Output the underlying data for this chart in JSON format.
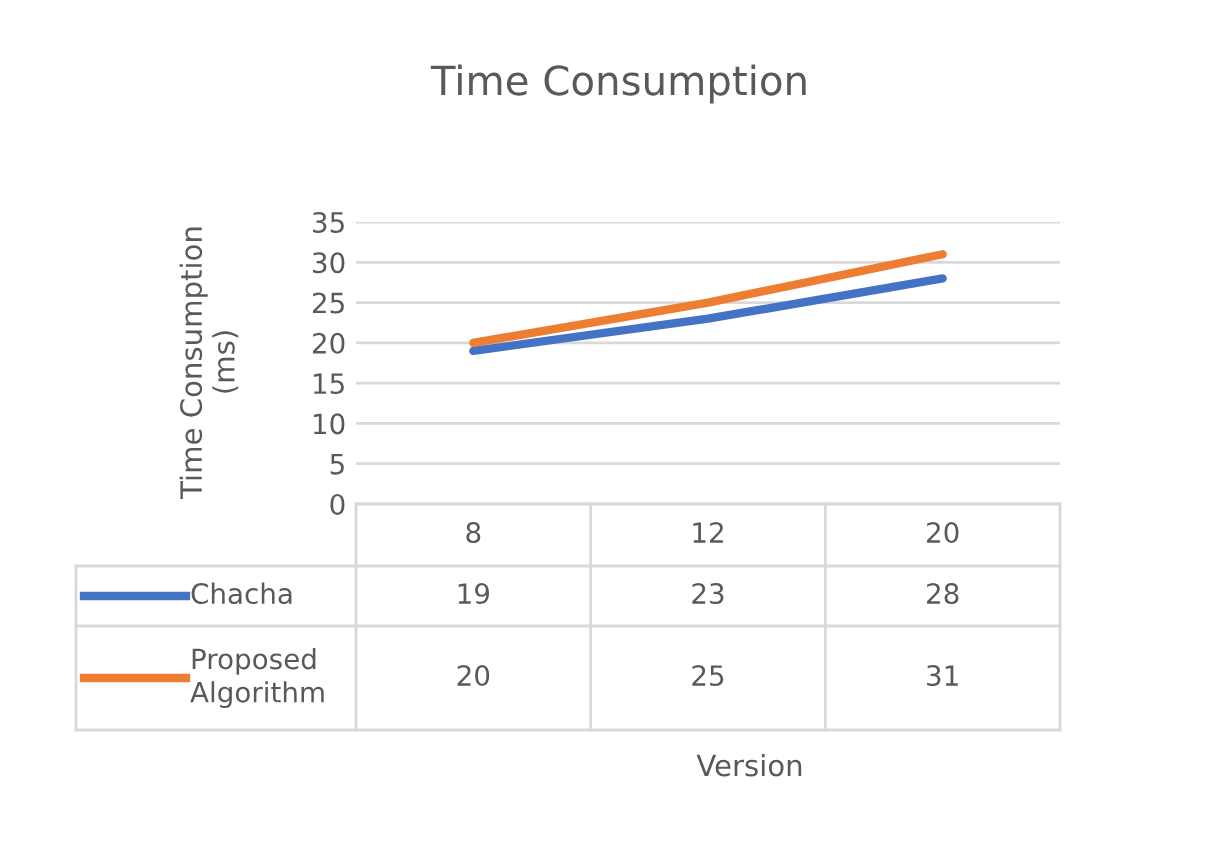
{
  "chart_data": {
    "type": "line",
    "title": "Time Consumption",
    "annotations": [
      "Version"
    ],
    "ylabel": "Time Consumption\n(ms)",
    "categories": [
      "8",
      "12",
      "20"
    ],
    "series": [
      {
        "name": "Chacha",
        "color": "#4472c4",
        "values": [
          19,
          23,
          28
        ]
      },
      {
        "name": "Proposed Algorithm",
        "color": "#ed7d31",
        "values": [
          20,
          25,
          31
        ]
      }
    ],
    "ylim": [
      0,
      35
    ],
    "yticks": [
      0,
      5,
      10,
      15,
      20,
      25,
      30,
      35
    ],
    "grid": "y",
    "legend": "bottom",
    "data_labels": true,
    "marker": "none",
    "line_style": "solid"
  }
}
